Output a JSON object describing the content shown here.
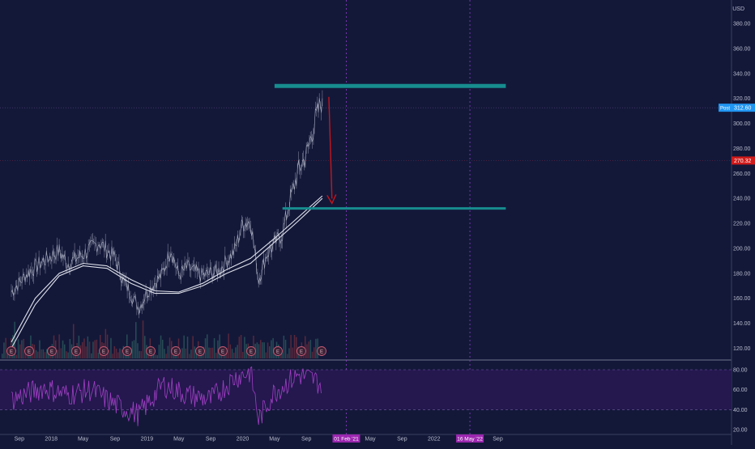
{
  "currency": "USD",
  "colors": {
    "background": "#131839",
    "rsi_band": "#24184f",
    "candles_gray": "#8c90a4",
    "ma": "#dfe1ea",
    "level_line": "#178c8f",
    "arrow": "#c4161c",
    "post_badge": "#2196f3",
    "price_badge": "#d11a1a",
    "date_badge": "#9c27b0",
    "rsi_line": "#a13fc4",
    "axis_text": "#b9bccb"
  },
  "chart_data": [
    {
      "type": "line",
      "title": "",
      "x_tick_labels": [
        "Sep",
        "2018",
        "May",
        "Sep",
        "2019",
        "May",
        "Sep",
        "2020",
        "May",
        "Sep",
        "01 Feb '21",
        "May",
        "Sep",
        "2022",
        "16 May '22",
        "Sep"
      ],
      "y_tick_labels": [
        "380.00",
        "360.00",
        "340.00",
        "320.00",
        "300.00",
        "280.00",
        "260.00",
        "240.00",
        "220.00",
        "200.00",
        "180.00",
        "160.00",
        "140.00",
        "120.00"
      ],
      "ylim": [
        120,
        390
      ],
      "y_unit": "USD",
      "series": [
        {
          "name": "",
          "kind": "price",
          "points": [
            [
              "2017-08",
              165
            ],
            [
              "2017-10",
              180
            ],
            [
              "2017-12",
              190
            ],
            [
              "2018-02",
              198
            ],
            [
              "2018-03",
              188
            ],
            [
              "2018-05",
              195
            ],
            [
              "2018-07",
              205
            ],
            [
              "2018-09",
              192
            ],
            [
              "2018-10",
              175
            ],
            [
              "2018-12",
              152
            ],
            [
              "2019-01",
              165
            ],
            [
              "2019-03",
              180
            ],
            [
              "2019-04",
              200
            ],
            [
              "2019-05",
              178
            ],
            [
              "2019-06",
              185
            ],
            [
              "2019-08",
              178
            ],
            [
              "2019-10",
              182
            ],
            [
              "2019-12",
              198
            ],
            [
              "2020-01",
              220
            ],
            [
              "2020-02",
              222
            ],
            [
              "2020-03",
              175
            ],
            [
              "2020-04",
              195
            ],
            [
              "2020-06",
              212
            ],
            [
              "2020-07",
              240
            ],
            [
              "2020-08",
              262
            ],
            [
              "2020-09",
              275
            ],
            [
              "2020-10",
              300
            ],
            [
              "2020-11",
              320
            ]
          ]
        },
        {
          "name": "",
          "kind": "moving-average",
          "points": [
            [
              "2017-08",
              120
            ],
            [
              "2017-11",
              155
            ],
            [
              "2018-02",
              178
            ],
            [
              "2018-05",
              186
            ],
            [
              "2018-08",
              184
            ],
            [
              "2018-11",
              172
            ],
            [
              "2019-02",
              164
            ],
            [
              "2019-05",
              164
            ],
            [
              "2019-08",
              170
            ],
            [
              "2019-11",
              180
            ],
            [
              "2020-02",
              188
            ],
            [
              "2020-05",
              205
            ],
            [
              "2020-08",
              222
            ],
            [
              "2020-11",
              240
            ]
          ]
        },
        {
          "name": "",
          "kind": "moving-average",
          "points": [
            [
              "2017-08",
              125
            ],
            [
              "2017-11",
              160
            ],
            [
              "2018-02",
              180
            ],
            [
              "2018-05",
              188
            ],
            [
              "2018-08",
              186
            ],
            [
              "2018-11",
              175
            ],
            [
              "2019-02",
              166
            ],
            [
              "2019-05",
              165
            ],
            [
              "2019-08",
              172
            ],
            [
              "2019-11",
              183
            ],
            [
              "2020-02",
              192
            ],
            [
              "2020-05",
              208
            ],
            [
              "2020-08",
              225
            ],
            [
              "2020-11",
              242
            ]
          ]
        }
      ],
      "levels": [
        {
          "from": "2020-05",
          "to": "2022-10",
          "value": 330
        },
        {
          "from": "2020-06",
          "to": "2022-10",
          "value": 232
        }
      ],
      "arrow": {
        "from": [
          "2020-11",
          320
        ],
        "to": [
          "2020-12",
          236
        ]
      },
      "vertical_markers": [
        "2021-02-01",
        "2022-05-16"
      ],
      "earnings_markers": [
        "E",
        "E",
        "E",
        "E",
        "E",
        "E",
        "E",
        "E",
        "E",
        "E",
        "E",
        "E",
        "E",
        "E"
      ],
      "price_labels": [
        {
          "tag": "Post",
          "value": "312.60"
        },
        {
          "tag": "",
          "value": "270.32"
        }
      ],
      "x_badges": [
        "01 Feb '21",
        "16 May '22"
      ]
    },
    {
      "type": "line",
      "title": "",
      "panel": "oscillator",
      "y_tick_labels": [
        "80.00",
        "60.00",
        "40.00",
        "20.00"
      ],
      "ylim": [
        15,
        85
      ],
      "band": [
        40,
        80
      ],
      "series": [
        {
          "name": "",
          "points": [
            [
              "2017-08",
              50
            ],
            [
              "2017-12",
              62
            ],
            [
              "2018-03",
              55
            ],
            [
              "2018-06",
              60
            ],
            [
              "2018-09",
              45
            ],
            [
              "2018-12",
              35
            ],
            [
              "2019-03",
              65
            ],
            [
              "2019-06",
              55
            ],
            [
              "2019-09",
              50
            ],
            [
              "2019-12",
              72
            ],
            [
              "2020-02",
              78
            ],
            [
              "2020-03",
              30
            ],
            [
              "2020-05",
              58
            ],
            [
              "2020-08",
              75
            ],
            [
              "2020-10",
              70
            ],
            [
              "2020-11",
              64
            ]
          ]
        }
      ]
    }
  ]
}
